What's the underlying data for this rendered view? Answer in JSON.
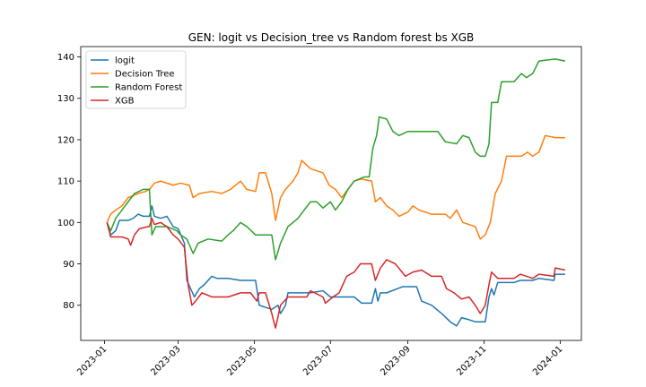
{
  "chart_data": {
    "type": "line",
    "title": "GEN: logit vs Decision_tree vs Random forest bs XGB",
    "xlabel": "",
    "ylabel": "",
    "xlim": [
      "2022-12-13",
      "2024-01-18"
    ],
    "ylim": [
      71.5,
      142.5
    ],
    "x_ticks": [
      "2023-01",
      "2023-03",
      "2023-05",
      "2023-07",
      "2023-09",
      "2023-11",
      "2024-01"
    ],
    "y_ticks": [
      80,
      90,
      100,
      110,
      120,
      130,
      140
    ],
    "grid": false,
    "legend_position": "top-left",
    "series": [
      {
        "name": "logit",
        "color": "#1f77b4",
        "points": [
          [
            "2023-01-03",
            100
          ],
          [
            "2023-01-06",
            97
          ],
          [
            "2023-01-10",
            98
          ],
          [
            "2023-01-13",
            100.5
          ],
          [
            "2023-01-20",
            100.5
          ],
          [
            "2023-01-24",
            101
          ],
          [
            "2023-01-28",
            102
          ],
          [
            "2023-02-01",
            101.5
          ],
          [
            "2023-02-06",
            101.5
          ],
          [
            "2023-02-08",
            104
          ],
          [
            "2023-02-10",
            101.5
          ],
          [
            "2023-02-15",
            101
          ],
          [
            "2023-02-20",
            101.5
          ],
          [
            "2023-02-25",
            99
          ],
          [
            "2023-03-01",
            98.5
          ],
          [
            "2023-03-06",
            95
          ],
          [
            "2023-03-08",
            86
          ],
          [
            "2023-03-11",
            84
          ],
          [
            "2023-03-14",
            82
          ],
          [
            "2023-03-18",
            84
          ],
          [
            "2023-03-22",
            85
          ],
          [
            "2023-03-28",
            87
          ],
          [
            "2023-04-01",
            86.5
          ],
          [
            "2023-04-10",
            86.5
          ],
          [
            "2023-04-20",
            86
          ],
          [
            "2023-05-02",
            86
          ],
          [
            "2023-05-05",
            80
          ],
          [
            "2023-05-10",
            79.5
          ],
          [
            "2023-05-15",
            79
          ],
          [
            "2023-05-20",
            80
          ],
          [
            "2023-05-22",
            78
          ],
          [
            "2023-05-26",
            80
          ],
          [
            "2023-05-28",
            83
          ],
          [
            "2023-06-05",
            83
          ],
          [
            "2023-06-15",
            83
          ],
          [
            "2023-06-25",
            83.5
          ],
          [
            "2023-07-01",
            82
          ],
          [
            "2023-07-10",
            82
          ],
          [
            "2023-07-20",
            82
          ],
          [
            "2023-07-26",
            80.5
          ],
          [
            "2023-08-03",
            80.5
          ],
          [
            "2023-08-06",
            84
          ],
          [
            "2023-08-08",
            81
          ],
          [
            "2023-08-10",
            83
          ],
          [
            "2023-08-15",
            83
          ],
          [
            "2023-08-28",
            84.5
          ],
          [
            "2023-09-08",
            84.5
          ],
          [
            "2023-09-12",
            81
          ],
          [
            "2023-09-20",
            80
          ],
          [
            "2023-09-28",
            78
          ],
          [
            "2023-10-05",
            76
          ],
          [
            "2023-10-10",
            75
          ],
          [
            "2023-10-14",
            77
          ],
          [
            "2023-10-20",
            76.5
          ],
          [
            "2023-10-25",
            76
          ],
          [
            "2023-11-02",
            76
          ],
          [
            "2023-11-05",
            82
          ],
          [
            "2023-11-07",
            84
          ],
          [
            "2023-11-09",
            82.5
          ],
          [
            "2023-11-12",
            85.5
          ],
          [
            "2023-11-25",
            85.5
          ],
          [
            "2023-11-30",
            86
          ],
          [
            "2023-12-10",
            86
          ],
          [
            "2023-12-15",
            86.5
          ],
          [
            "2023-12-27",
            86
          ],
          [
            "2023-12-28",
            87.5
          ],
          [
            "2024-01-05",
            87.5
          ]
        ]
      },
      {
        "name": "Decision Tree",
        "color": "#ff7f0e",
        "points": [
          [
            "2023-01-03",
            100
          ],
          [
            "2023-01-06",
            102
          ],
          [
            "2023-01-10",
            103
          ],
          [
            "2023-01-15",
            104
          ],
          [
            "2023-01-20",
            106
          ],
          [
            "2023-01-28",
            107
          ],
          [
            "2023-02-03",
            107.5
          ],
          [
            "2023-02-06",
            108
          ],
          [
            "2023-02-10",
            109.5
          ],
          [
            "2023-02-15",
            110
          ],
          [
            "2023-02-25",
            109
          ],
          [
            "2023-03-03",
            109.5
          ],
          [
            "2023-03-10",
            109
          ],
          [
            "2023-03-13",
            106
          ],
          [
            "2023-03-18",
            107
          ],
          [
            "2023-03-28",
            107.5
          ],
          [
            "2023-04-05",
            107
          ],
          [
            "2023-04-12",
            108
          ],
          [
            "2023-04-20",
            110
          ],
          [
            "2023-04-25",
            108
          ],
          [
            "2023-05-02",
            107.5
          ],
          [
            "2023-05-05",
            112
          ],
          [
            "2023-05-10",
            112
          ],
          [
            "2023-05-15",
            107
          ],
          [
            "2023-05-18",
            100.5
          ],
          [
            "2023-05-22",
            106
          ],
          [
            "2023-05-26",
            108
          ],
          [
            "2023-06-01",
            110
          ],
          [
            "2023-06-05",
            112
          ],
          [
            "2023-06-08",
            115
          ],
          [
            "2023-06-15",
            113
          ],
          [
            "2023-06-25",
            112
          ],
          [
            "2023-06-30",
            109
          ],
          [
            "2023-07-05",
            108
          ],
          [
            "2023-07-10",
            106
          ],
          [
            "2023-07-15",
            108
          ],
          [
            "2023-07-20",
            110
          ],
          [
            "2023-07-26",
            110.5
          ],
          [
            "2023-08-03",
            110
          ],
          [
            "2023-08-06",
            105
          ],
          [
            "2023-08-10",
            106
          ],
          [
            "2023-08-15",
            104
          ],
          [
            "2023-08-20",
            103
          ],
          [
            "2023-08-25",
            101.5
          ],
          [
            "2023-09-01",
            102.5
          ],
          [
            "2023-09-05",
            104
          ],
          [
            "2023-09-10",
            103
          ],
          [
            "2023-09-20",
            102
          ],
          [
            "2023-10-01",
            102
          ],
          [
            "2023-10-05",
            101
          ],
          [
            "2023-10-10",
            103
          ],
          [
            "2023-10-15",
            100
          ],
          [
            "2023-10-25",
            99
          ],
          [
            "2023-10-29",
            96
          ],
          [
            "2023-11-02",
            97
          ],
          [
            "2023-11-06",
            100
          ],
          [
            "2023-11-10",
            107
          ],
          [
            "2023-11-15",
            110
          ],
          [
            "2023-11-19",
            116
          ],
          [
            "2023-12-01",
            116
          ],
          [
            "2023-12-06",
            117
          ],
          [
            "2023-12-10",
            116
          ],
          [
            "2023-12-15",
            117
          ],
          [
            "2023-12-20",
            121
          ],
          [
            "2023-12-28",
            120.5
          ],
          [
            "2024-01-05",
            120.5
          ]
        ]
      },
      {
        "name": "Random Forest",
        "color": "#2ca02c",
        "points": [
          [
            "2023-01-03",
            100
          ],
          [
            "2023-01-06",
            98
          ],
          [
            "2023-01-10",
            101
          ],
          [
            "2023-01-15",
            103
          ],
          [
            "2023-01-20",
            105
          ],
          [
            "2023-01-25",
            107
          ],
          [
            "2023-02-01",
            108
          ],
          [
            "2023-02-06",
            108
          ],
          [
            "2023-02-08",
            97
          ],
          [
            "2023-02-11",
            99
          ],
          [
            "2023-02-20",
            99
          ],
          [
            "2023-02-28",
            98
          ],
          [
            "2023-03-03",
            97
          ],
          [
            "2023-03-08",
            96
          ],
          [
            "2023-03-13",
            92.5
          ],
          [
            "2023-03-17",
            95
          ],
          [
            "2023-03-25",
            96
          ],
          [
            "2023-04-05",
            95.5
          ],
          [
            "2023-04-10",
            97
          ],
          [
            "2023-04-14",
            98
          ],
          [
            "2023-04-20",
            100
          ],
          [
            "2023-04-25",
            99
          ],
          [
            "2023-05-02",
            97
          ],
          [
            "2023-05-15",
            97
          ],
          [
            "2023-05-18",
            91
          ],
          [
            "2023-05-22",
            95
          ],
          [
            "2023-05-28",
            99
          ],
          [
            "2023-06-01",
            100
          ],
          [
            "2023-06-05",
            101
          ],
          [
            "2023-06-10",
            103
          ],
          [
            "2023-06-15",
            105
          ],
          [
            "2023-06-20",
            105
          ],
          [
            "2023-06-25",
            103.5
          ],
          [
            "2023-07-01",
            105
          ],
          [
            "2023-07-05",
            103
          ],
          [
            "2023-07-10",
            105
          ],
          [
            "2023-07-15",
            108
          ],
          [
            "2023-07-20",
            110
          ],
          [
            "2023-07-28",
            111
          ],
          [
            "2023-08-01",
            111
          ],
          [
            "2023-08-04",
            118
          ],
          [
            "2023-08-07",
            121
          ],
          [
            "2023-08-09",
            125.5
          ],
          [
            "2023-08-15",
            125
          ],
          [
            "2023-08-20",
            122
          ],
          [
            "2023-08-25",
            121
          ],
          [
            "2023-09-01",
            122
          ],
          [
            "2023-09-10",
            122
          ],
          [
            "2023-09-25",
            122
          ],
          [
            "2023-10-01",
            119.5
          ],
          [
            "2023-10-10",
            119
          ],
          [
            "2023-10-15",
            121
          ],
          [
            "2023-10-20",
            120.5
          ],
          [
            "2023-10-25",
            117
          ],
          [
            "2023-10-29",
            116
          ],
          [
            "2023-11-02",
            116
          ],
          [
            "2023-11-05",
            119
          ],
          [
            "2023-11-07",
            129
          ],
          [
            "2023-11-12",
            129
          ],
          [
            "2023-11-15",
            134
          ],
          [
            "2023-11-25",
            134
          ],
          [
            "2023-12-01",
            136
          ],
          [
            "2023-12-05",
            135
          ],
          [
            "2023-12-10",
            136
          ],
          [
            "2023-12-15",
            139
          ],
          [
            "2023-12-28",
            139.5
          ],
          [
            "2024-01-05",
            139
          ]
        ]
      },
      {
        "name": "XGB",
        "color": "#d62728",
        "points": [
          [
            "2023-01-03",
            100
          ],
          [
            "2023-01-06",
            96.5
          ],
          [
            "2023-01-15",
            96.5
          ],
          [
            "2023-01-20",
            96
          ],
          [
            "2023-01-22",
            94.5
          ],
          [
            "2023-01-25",
            97
          ],
          [
            "2023-01-29",
            98.5
          ],
          [
            "2023-02-05",
            99
          ],
          [
            "2023-02-06",
            99
          ],
          [
            "2023-02-08",
            101
          ],
          [
            "2023-02-10",
            99.5
          ],
          [
            "2023-02-15",
            100
          ],
          [
            "2023-02-20",
            99
          ],
          [
            "2023-02-25",
            97
          ],
          [
            "2023-03-01",
            96
          ],
          [
            "2023-03-06",
            94
          ],
          [
            "2023-03-09",
            85
          ],
          [
            "2023-03-12",
            80
          ],
          [
            "2023-03-15",
            81
          ],
          [
            "2023-03-20",
            83
          ],
          [
            "2023-03-28",
            82
          ],
          [
            "2023-04-10",
            82
          ],
          [
            "2023-04-20",
            83
          ],
          [
            "2023-04-28",
            83
          ],
          [
            "2023-05-03",
            81
          ],
          [
            "2023-05-05",
            83
          ],
          [
            "2023-05-10",
            83
          ],
          [
            "2023-05-15",
            78
          ],
          [
            "2023-05-18",
            74.5
          ],
          [
            "2023-05-22",
            80
          ],
          [
            "2023-05-28",
            82
          ],
          [
            "2023-06-05",
            82
          ],
          [
            "2023-06-12",
            82
          ],
          [
            "2023-06-15",
            83.5
          ],
          [
            "2023-06-25",
            82
          ],
          [
            "2023-06-27",
            80.5
          ],
          [
            "2023-07-03",
            82
          ],
          [
            "2023-07-08",
            83
          ],
          [
            "2023-07-14",
            87
          ],
          [
            "2023-07-20",
            88
          ],
          [
            "2023-07-25",
            90
          ],
          [
            "2023-08-03",
            90
          ],
          [
            "2023-08-06",
            86
          ],
          [
            "2023-08-10",
            89
          ],
          [
            "2023-08-15",
            91
          ],
          [
            "2023-08-22",
            90
          ],
          [
            "2023-08-30",
            87
          ],
          [
            "2023-09-05",
            88
          ],
          [
            "2023-09-12",
            88.5
          ],
          [
            "2023-09-20",
            87
          ],
          [
            "2023-09-28",
            87
          ],
          [
            "2023-10-02",
            84
          ],
          [
            "2023-10-08",
            83
          ],
          [
            "2023-10-14",
            81.5
          ],
          [
            "2023-10-20",
            82
          ],
          [
            "2023-10-25",
            80
          ],
          [
            "2023-10-29",
            78
          ],
          [
            "2023-11-02",
            80
          ],
          [
            "2023-11-05",
            85
          ],
          [
            "2023-11-07",
            88
          ],
          [
            "2023-11-12",
            86.5
          ],
          [
            "2023-11-25",
            86.5
          ],
          [
            "2023-11-30",
            87.5
          ],
          [
            "2023-12-10",
            86.5
          ],
          [
            "2023-12-15",
            87.5
          ],
          [
            "2023-12-27",
            87
          ],
          [
            "2023-12-28",
            89
          ],
          [
            "2024-01-05",
            88.5
          ]
        ]
      }
    ]
  }
}
